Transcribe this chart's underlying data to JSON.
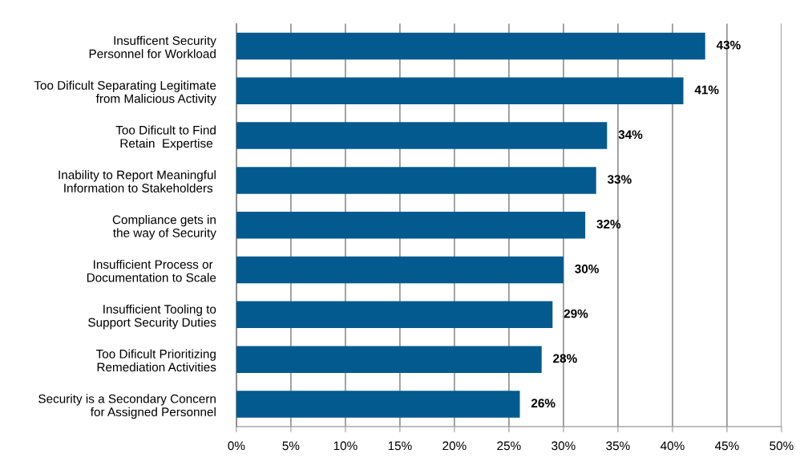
{
  "chart_data": {
    "type": "bar",
    "orientation": "horizontal",
    "categories": [
      "Insufficent Security\nPersonnel for Workload",
      "Too Dificult Separating Legitimate\nfrom Malicious Activity",
      "Too Dificult to Find\nRetain  Expertise ",
      "Inability to Report Meaningful\nInformation to Stakeholders ",
      "Compliance gets in\nthe way of Security",
      "Insufficient Process or \nDocumentation to Scale",
      "Insufficient Tooling to\nSupport Security Duties",
      "Too Dificult Prioritizing\nRemediation Activities",
      "Security is a Secondary Concern\nfor Assigned Personnel"
    ],
    "values": [
      43,
      41,
      34,
      33,
      32,
      30,
      29,
      28,
      26
    ],
    "value_labels": [
      "43%",
      "41%",
      "34%",
      "33%",
      "32%",
      "30%",
      "29%",
      "28%",
      "26%"
    ],
    "color": "#035a8e",
    "xlim": [
      0,
      50
    ],
    "xticks": [
      {
        "value": 0,
        "label": "0%"
      },
      {
        "value": 5,
        "label": "5%"
      },
      {
        "value": 10,
        "label": "10%"
      },
      {
        "value": 15,
        "label": "15%"
      },
      {
        "value": 20,
        "label": "20%"
      },
      {
        "value": 25,
        "label": "25%"
      },
      {
        "value": 30,
        "label": "30%"
      },
      {
        "value": 35,
        "label": "35%"
      },
      {
        "value": 40,
        "label": "40%"
      },
      {
        "value": 45,
        "label": "45%"
      },
      {
        "value": 50,
        "label": "50%"
      }
    ],
    "grid": "x"
  }
}
